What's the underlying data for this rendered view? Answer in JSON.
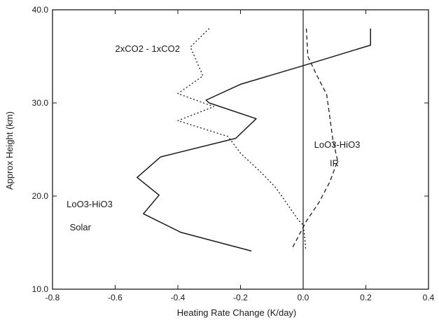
{
  "chart_data": {
    "type": "line",
    "xlabel": "Heating Rate Change (K/day)",
    "ylabel": "Approx Height (km)",
    "xlim": [
      -0.8,
      0.4
    ],
    "ylim": [
      10.0,
      40.0
    ],
    "xticks": [
      -0.8,
      -0.6,
      -0.4,
      -0.2,
      0.0,
      0.2,
      0.4
    ],
    "yticks": [
      10.0,
      20.0,
      30.0,
      40.0
    ],
    "xtick_labels": [
      "-0.8",
      "-0.6",
      "-0.4",
      "-0.2",
      "0.0",
      "0.2",
      "0.4"
    ],
    "ytick_labels": [
      "10.0",
      "20.0",
      "30.0",
      "40.0"
    ],
    "grid": false,
    "zero_line_x": 0.0,
    "series": [
      {
        "style": "solid",
        "points": [
          [
            0.215,
            38.0
          ],
          [
            0.215,
            36.2
          ],
          [
            0.0,
            34.0
          ],
          [
            -0.2,
            32.0
          ],
          [
            -0.31,
            30.3
          ],
          [
            -0.3,
            30.0
          ],
          [
            -0.15,
            28.3
          ],
          [
            -0.215,
            26.2
          ],
          [
            -0.455,
            24.2
          ],
          [
            -0.53,
            22.0
          ],
          [
            -0.46,
            20.1
          ],
          [
            -0.51,
            18.1
          ],
          [
            -0.39,
            16.1
          ],
          [
            -0.165,
            14.1
          ]
        ]
      },
      {
        "style": "dotted",
        "points": [
          [
            -0.3,
            38.0
          ],
          [
            -0.36,
            36.0
          ],
          [
            -0.32,
            32.9
          ],
          [
            -0.4,
            31.0
          ],
          [
            -0.285,
            29.6
          ],
          [
            -0.4,
            28.1
          ],
          [
            -0.24,
            26.4
          ],
          [
            -0.2,
            24.6
          ],
          [
            -0.13,
            22.4
          ],
          [
            -0.09,
            21.0
          ],
          [
            -0.06,
            19.6
          ],
          [
            -0.015,
            17.4
          ],
          [
            0.0,
            16.9
          ],
          [
            0.005,
            15.6
          ],
          [
            0.008,
            14.3
          ]
        ]
      },
      {
        "style": "dashed",
        "points": [
          [
            0.01,
            38.0
          ],
          [
            0.015,
            35.0
          ],
          [
            0.04,
            33.2
          ],
          [
            0.075,
            30.9
          ],
          [
            0.085,
            28.5
          ],
          [
            0.095,
            26.0
          ],
          [
            0.11,
            23.8
          ],
          [
            0.085,
            21.5
          ],
          [
            0.05,
            19.3
          ],
          [
            0.01,
            17.3
          ],
          [
            -0.01,
            16.0
          ],
          [
            -0.035,
            14.4
          ]
        ]
      }
    ],
    "annotations": [
      {
        "text": "2xCO2 - 1xCO2",
        "x": -0.6,
        "y": 35.5
      },
      {
        "text": "LoO3-HiO3",
        "x": 0.035,
        "y": 25.2
      },
      {
        "text": "IR",
        "x": 0.085,
        "y": 23.2
      },
      {
        "text": "LoO3-HiO3",
        "x": -0.755,
        "y": 18.8
      },
      {
        "text": "Solar",
        "x": -0.745,
        "y": 16.3
      }
    ]
  },
  "colors": {
    "ink": "#1a1a1a",
    "background": "#ffffff"
  }
}
